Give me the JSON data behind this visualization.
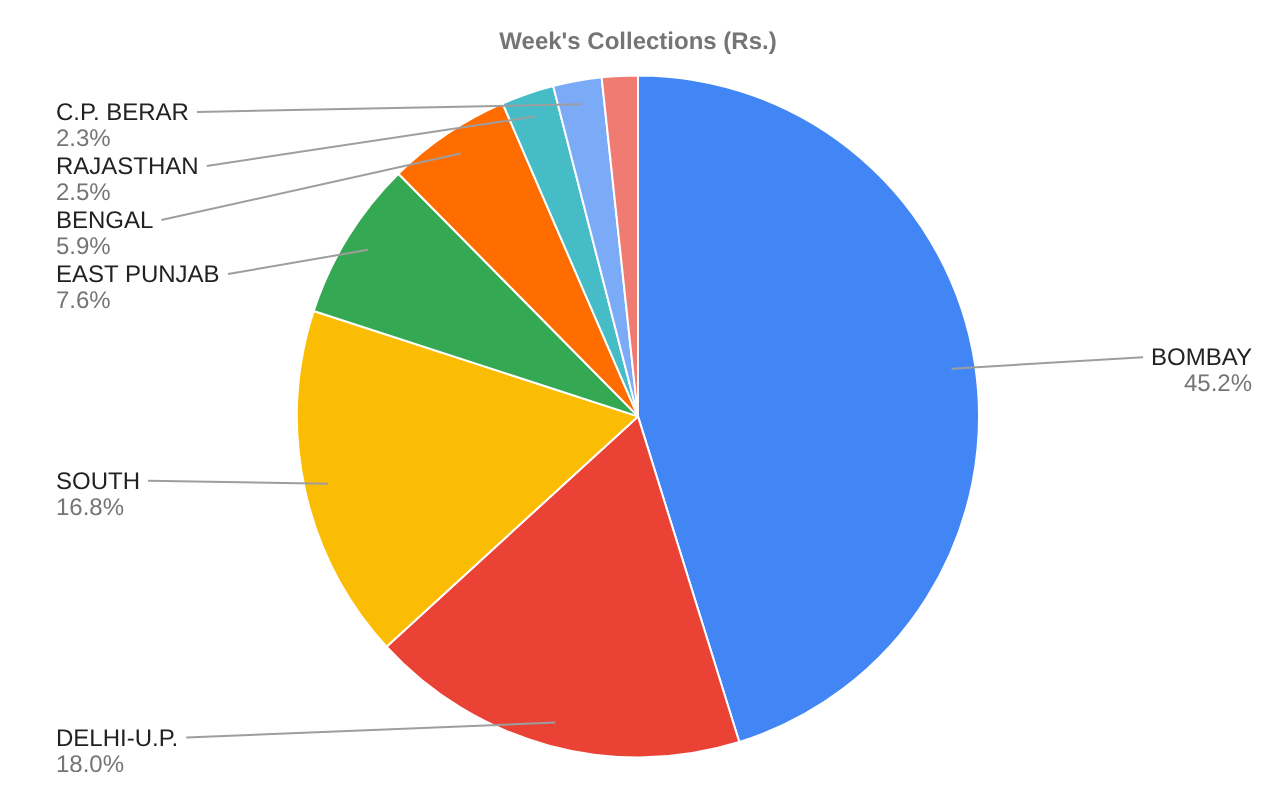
{
  "chart_data": {
    "type": "pie",
    "title": "Week's Collections (Rs.)",
    "legend": false,
    "categories": [
      "BOMBAY",
      "DELHI-U.P.",
      "SOUTH",
      "EAST PUNJAB",
      "BENGAL",
      "RAJASTHAN",
      "C.P. BERAR",
      null
    ],
    "values": [
      45.2,
      18.0,
      16.8,
      7.6,
      5.9,
      2.5,
      2.3,
      1.7
    ],
    "value_labels": [
      "45.2%",
      "18.0%",
      "16.8%",
      "7.6%",
      "5.9%",
      "2.5%",
      "2.3%",
      null
    ],
    "colors": [
      "#4285f4",
      "#ea4335",
      "#fbbc04",
      "#34a853",
      "#ff6d01",
      "#46bdc6",
      "#7baaf7",
      "#f07b72"
    ]
  }
}
